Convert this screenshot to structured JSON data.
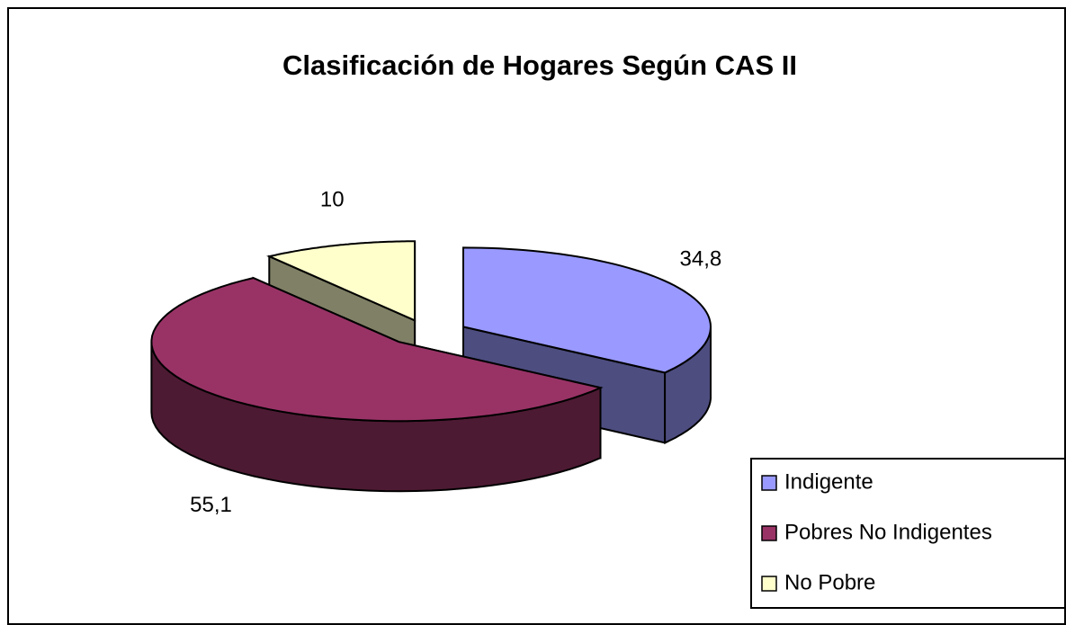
{
  "chart_data": {
    "type": "pie",
    "title": "Clasificación de Hogares Según CAS II",
    "categories": [
      "Indigente",
      "Pobres No Indigentes",
      "No Pobre"
    ],
    "values": [
      34.8,
      55.1,
      10
    ],
    "value_labels": [
      "34,8",
      "55,1",
      "10"
    ],
    "colors": [
      "#9999ff",
      "#993366",
      "#ffffcc"
    ],
    "legend": "right"
  }
}
